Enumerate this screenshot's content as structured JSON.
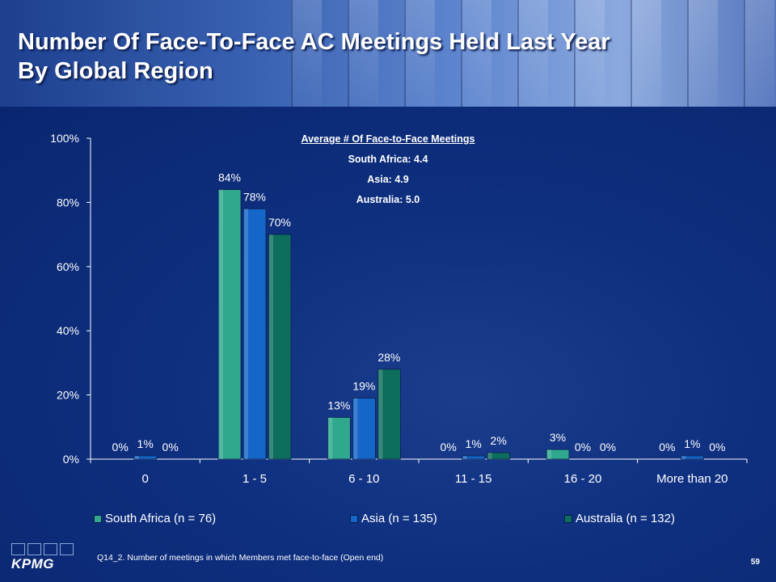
{
  "slide": {
    "title": "Number Of Face-To-Face AC Meetings Held Last Year\nBy Global Region",
    "footnote": "Q14_2. Number of meetings in which Members met face-to-face (Open end)",
    "page_number": "59",
    "logo_text": "KPMG"
  },
  "colors": {
    "background": "#0b2a78",
    "south_africa": "#2fa88e",
    "asia": "#1466c8",
    "australia": "#0e6e5e"
  },
  "annotation": {
    "title": "Average # Of Face-to-Face Meetings",
    "lines": [
      "South Africa: 4.4",
      "Asia: 4.9",
      "Australia: 5.0"
    ]
  },
  "chart_data": {
    "type": "bar",
    "categories": [
      "0",
      "1 - 5",
      "6 - 10",
      "11 - 15",
      "16 - 20",
      "More than 20"
    ],
    "series": [
      {
        "name": "South Africa (n = 76)",
        "values": [
          0,
          84,
          13,
          0,
          3,
          0
        ],
        "labels": [
          "0%",
          "84%",
          "13%",
          "0%",
          "3%",
          "0%"
        ]
      },
      {
        "name": "Asia (n = 135)",
        "values": [
          1,
          78,
          19,
          1,
          0,
          1
        ],
        "labels": [
          "1%",
          "78%",
          "19%",
          "1%",
          "0%",
          "1%"
        ]
      },
      {
        "name": "Australia (n = 132)",
        "values": [
          0,
          70,
          28,
          2,
          0,
          0
        ],
        "labels": [
          "0%",
          "70%",
          "28%",
          "2%",
          "0%",
          "0%"
        ]
      }
    ],
    "ylim": [
      0,
      100
    ],
    "yticks": [
      "0%",
      "20%",
      "40%",
      "60%",
      "80%",
      "100%"
    ],
    "legend_position": "bottom",
    "grid": false
  }
}
